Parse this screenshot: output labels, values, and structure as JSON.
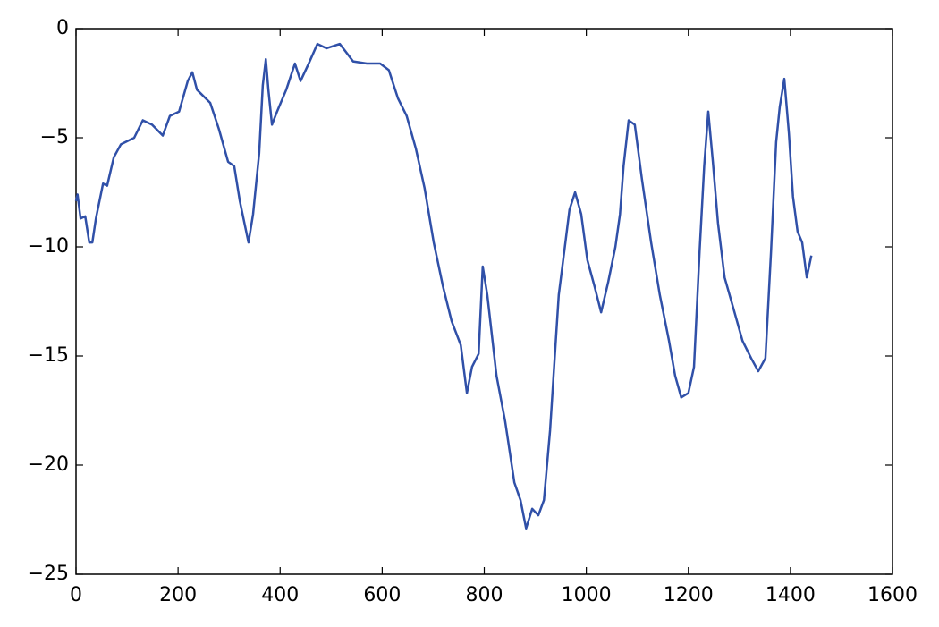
{
  "chart_data": {
    "type": "line",
    "series": [
      {
        "color": "#3050a8",
        "x": [
          0,
          3,
          9,
          18,
          26,
          32,
          39,
          53,
          61,
          74,
          88,
          114,
          131,
          149,
          170,
          184,
          202,
          219,
          228,
          237,
          263,
          280,
          298,
          310,
          321,
          338,
          347,
          359,
          366,
          372,
          377,
          384,
          394,
          412,
          429,
          440,
          456,
          473,
          491,
          517,
          543,
          570,
          596,
          613,
          631,
          648,
          666,
          683,
          701,
          719,
          736,
          754,
          766,
          776,
          789,
          797,
          806,
          824,
          841,
          859,
          871,
          882,
          894,
          906,
          917,
          929,
          938,
          946,
          959,
          967,
          978,
          990,
          1002,
          1016,
          1029,
          1043,
          1057,
          1066,
          1073,
          1083,
          1095,
          1109,
          1127,
          1144,
          1162,
          1174,
          1186,
          1200,
          1211,
          1222,
          1231,
          1239,
          1248,
          1258,
          1271,
          1288,
          1306,
          1323,
          1337,
          1351,
          1362,
          1372,
          1379,
          1388,
          1397,
          1405,
          1414,
          1423,
          1432,
          1441
        ],
        "values": [
          -7.9,
          -7.6,
          -8.7,
          -8.6,
          -9.8,
          -9.8,
          -8.7,
          -7.1,
          -7.2,
          -5.9,
          -5.3,
          -5.0,
          -4.2,
          -4.4,
          -4.9,
          -4.0,
          -3.8,
          -2.4,
          -2.0,
          -2.8,
          -3.4,
          -4.6,
          -6.1,
          -6.3,
          -7.9,
          -9.8,
          -8.5,
          -5.7,
          -2.6,
          -1.4,
          -2.8,
          -4.4,
          -3.8,
          -2.8,
          -1.6,
          -2.4,
          -1.6,
          -0.7,
          -0.9,
          -0.7,
          -1.5,
          -1.6,
          -1.6,
          -1.9,
          -3.2,
          -4.0,
          -5.5,
          -7.3,
          -9.8,
          -11.8,
          -13.4,
          -14.5,
          -16.7,
          -15.5,
          -14.9,
          -10.9,
          -12.2,
          -15.9,
          -18.0,
          -20.8,
          -21.6,
          -22.9,
          -22.0,
          -22.3,
          -21.6,
          -18.4,
          -15.1,
          -12.2,
          -9.8,
          -8.3,
          -7.5,
          -8.5,
          -10.6,
          -11.8,
          -13.0,
          -11.6,
          -10.0,
          -8.5,
          -6.3,
          -4.2,
          -4.4,
          -6.9,
          -9.8,
          -12.2,
          -14.3,
          -15.9,
          -16.9,
          -16.7,
          -15.5,
          -10.2,
          -6.3,
          -3.8,
          -6.1,
          -8.9,
          -11.4,
          -12.8,
          -14.3,
          -15.1,
          -15.7,
          -15.1,
          -10.2,
          -5.2,
          -3.6,
          -2.3,
          -4.8,
          -7.7,
          -9.3,
          -9.8,
          -11.4,
          -10.4
        ]
      }
    ],
    "xlim": [
      0,
      1600
    ],
    "xticks": [
      0,
      200,
      400,
      600,
      800,
      1000,
      1200,
      1400,
      1600
    ],
    "ylim": [
      -25,
      0
    ],
    "yticks": [
      {
        "value": -25,
        "label": "−25"
      },
      {
        "value": -20,
        "label": "−20"
      },
      {
        "value": -15,
        "label": "−15"
      },
      {
        "value": -10,
        "label": "−10"
      },
      {
        "value": -5,
        "label": "−5"
      },
      0
    ]
  }
}
